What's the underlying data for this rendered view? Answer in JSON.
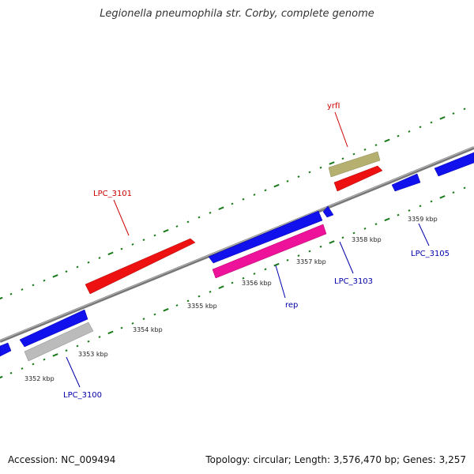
{
  "title": "Legionella pneumophila str. Corby, complete genome",
  "footer": {
    "accession": "Accession: NC_009494",
    "summary": "Topology: circular; Length: 3,576,470 bp; Genes: 3,257"
  },
  "colors": {
    "backbone": "#888888",
    "tick": "#1a7a1a",
    "forward_label": "#cc0000",
    "reverse_label": "#0000aa",
    "gene_red": "#ee1111",
    "gene_blue": "#1111ee",
    "gene_pink": "#ee1199",
    "gene_olive": "#b5b070",
    "gene_gray": "#bbbbbb"
  },
  "ticks": [
    "3352 kbp",
    "3353 kbp",
    "3354 kbp",
    "3355 kbp",
    "3356 kbp",
    "3357 kbp",
    "3358 kbp",
    "3359 kbp"
  ],
  "gene_labels": {
    "lpc3101": "LPC_3101",
    "yrfi": "yrfI",
    "lpc3100": "LPC_3100",
    "rep": "rep",
    "lpc3103": "LPC_3103",
    "lpc3105": "LPC_3105"
  }
}
